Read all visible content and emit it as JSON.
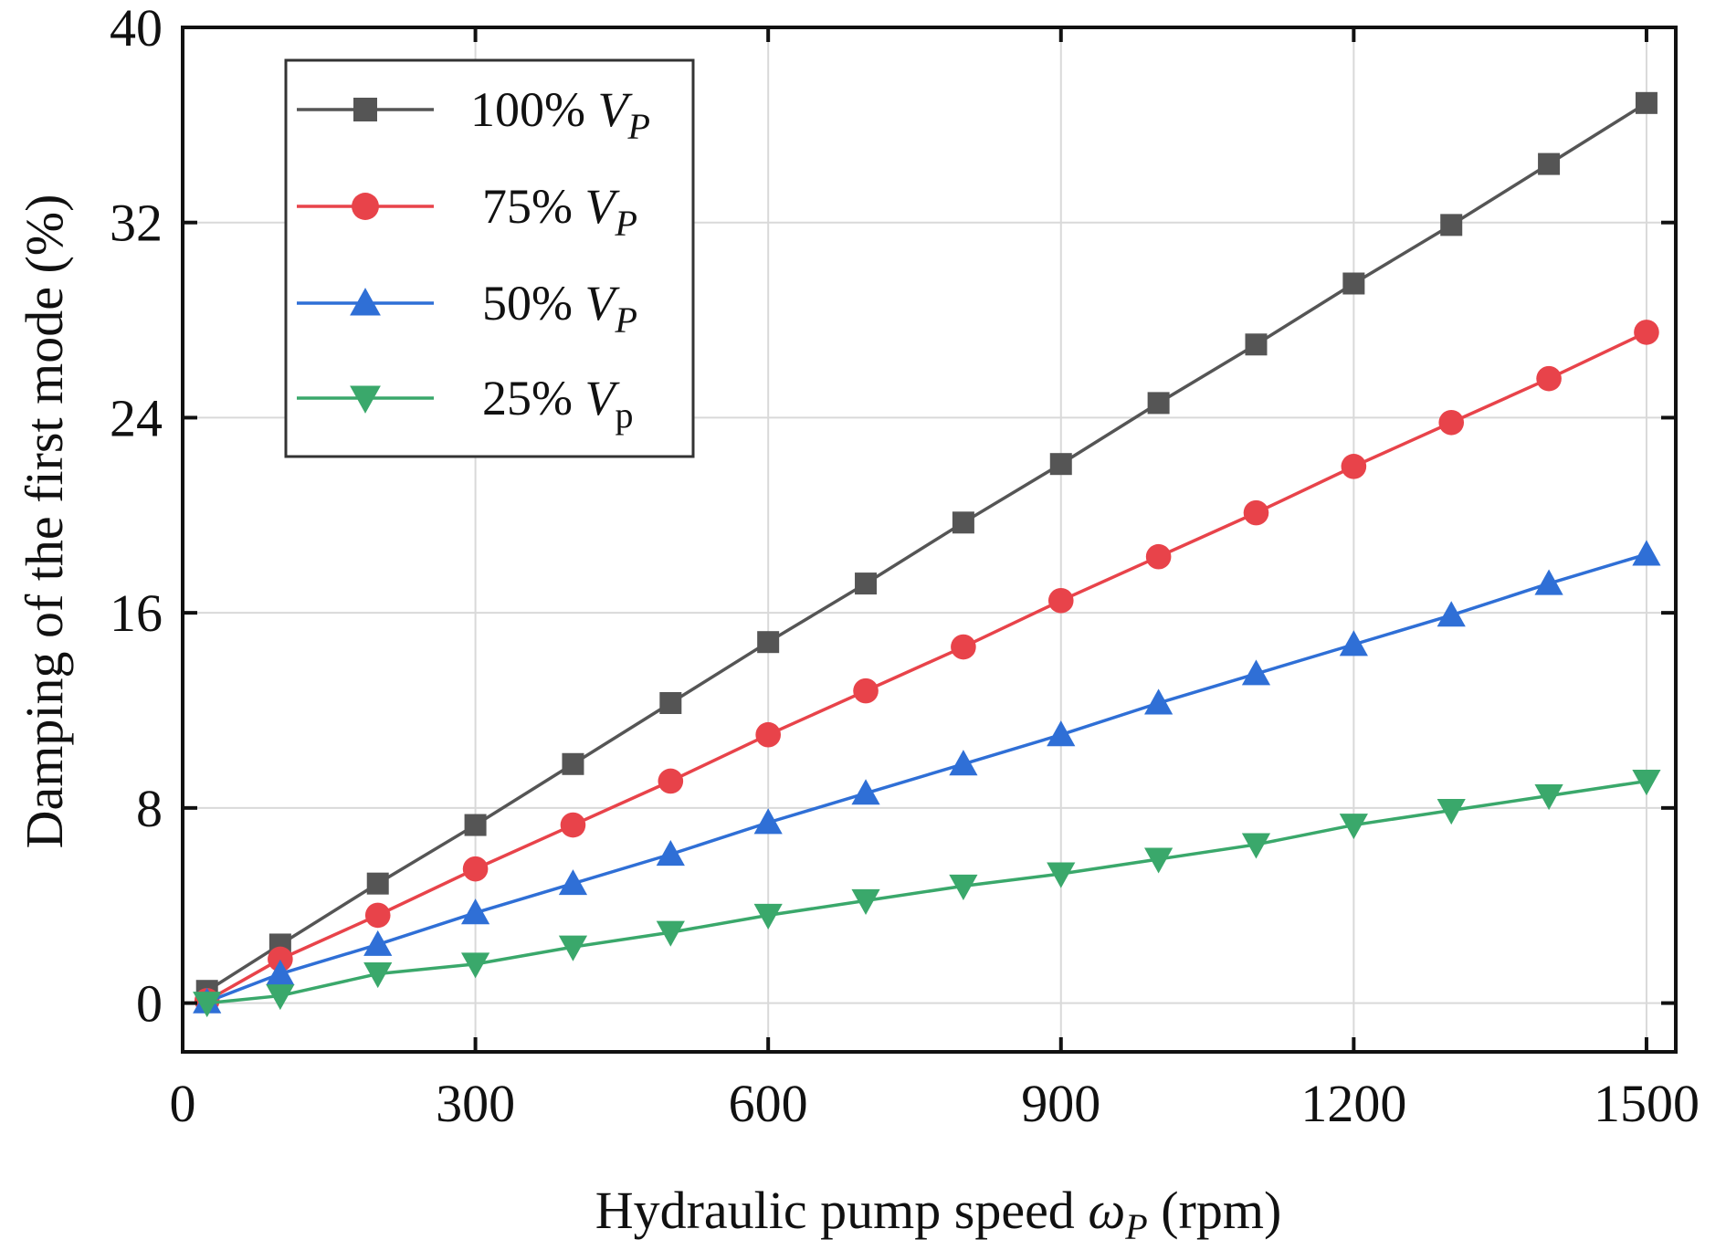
{
  "chart_data": {
    "type": "line",
    "xlabel_prefix": "Hydraulic pump speed ",
    "xlabel_symbol": "ω",
    "xlabel_subscript": "P",
    "xlabel_suffix": " (rpm)",
    "ylabel": "Damping of the first  mode (%)",
    "xlim": [
      0,
      1530
    ],
    "ylim": [
      -2,
      40
    ],
    "xticks": [
      "0",
      "300",
      "600",
      "900",
      "1200",
      "1500"
    ],
    "xtick_values": [
      0,
      300,
      600,
      900,
      1200,
      1500
    ],
    "yticks": [
      "0",
      "8",
      "16",
      "24",
      "32",
      "40"
    ],
    "ytick_values": [
      0,
      8,
      16,
      24,
      32,
      40
    ],
    "grid": true,
    "legend_position": "top-left",
    "x": [
      25,
      100,
      200,
      300,
      400,
      500,
      600,
      700,
      800,
      900,
      1000,
      1100,
      1200,
      1300,
      1400,
      1500
    ],
    "series": [
      {
        "name": "100% V",
        "subscript": "P",
        "color": "#555555",
        "marker": "square",
        "values": [
          0.5,
          2.4,
          4.9,
          7.3,
          9.8,
          12.3,
          14.8,
          17.2,
          19.7,
          22.1,
          24.6,
          27.0,
          29.5,
          31.9,
          34.4,
          36.9
        ]
      },
      {
        "name": "75% V",
        "subscript": "P",
        "color": "#e8434a",
        "marker": "circle",
        "values": [
          0.1,
          1.8,
          3.6,
          5.5,
          7.3,
          9.1,
          11.0,
          12.8,
          14.6,
          16.5,
          18.3,
          20.1,
          22.0,
          23.8,
          25.6,
          27.5
        ]
      },
      {
        "name": "50% V",
        "subscript": "P",
        "color": "#2f6fd6",
        "marker": "triangle-up",
        "values": [
          0.05,
          1.2,
          2.4,
          3.7,
          4.9,
          6.1,
          7.4,
          8.6,
          9.8,
          11.0,
          12.3,
          13.5,
          14.7,
          15.9,
          17.2,
          18.4
        ]
      },
      {
        "name": "25% V",
        "subscript": "p",
        "color": "#3aa86b",
        "marker": "triangle-down",
        "values": [
          0.0,
          0.3,
          1.2,
          1.6,
          2.3,
          2.9,
          3.6,
          4.2,
          4.8,
          5.3,
          5.9,
          6.5,
          7.3,
          7.9,
          8.5,
          9.1
        ]
      }
    ]
  }
}
